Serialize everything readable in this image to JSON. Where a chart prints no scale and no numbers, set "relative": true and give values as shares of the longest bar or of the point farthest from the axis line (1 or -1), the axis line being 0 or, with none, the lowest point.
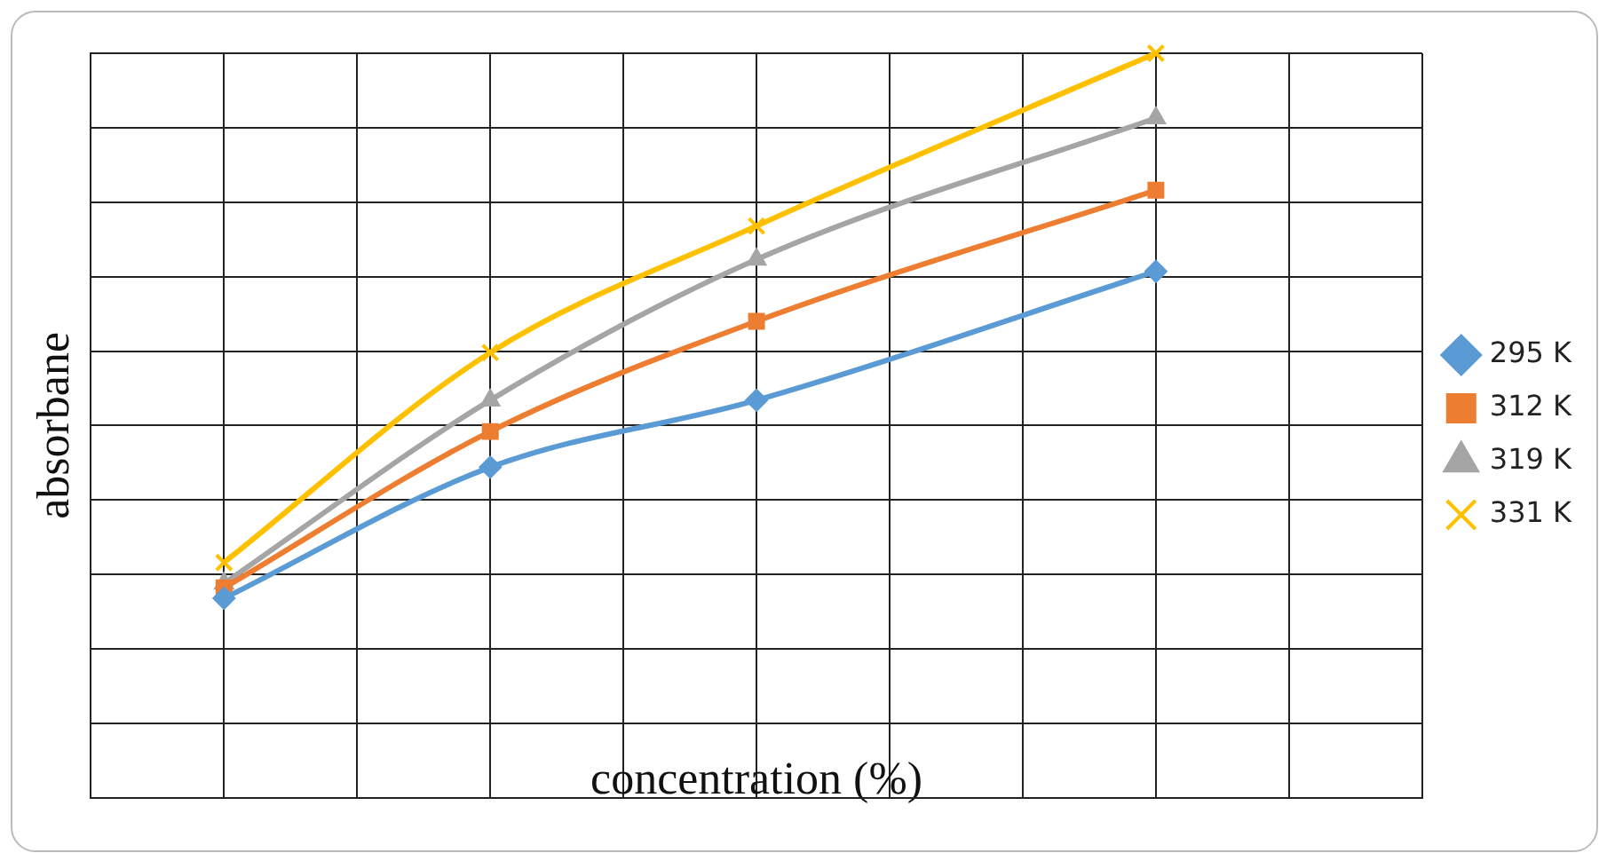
{
  "chart_data": {
    "type": "line",
    "relative": true,
    "xlabel": "concentration (%)",
    "ylabel": "absorbane",
    "categories": [
      null,
      null,
      null,
      null,
      null,
      null,
      null,
      null,
      null,
      null,
      null
    ],
    "series": [
      {
        "name": "295 K",
        "color": "#5b9bd5",
        "marker": "diamond",
        "values": [
          null,
          0.268,
          null,
          0.444,
          null,
          0.534,
          null,
          null,
          0.707,
          null,
          null
        ]
      },
      {
        "name": "312 K",
        "color": "#ed7d31",
        "marker": "square",
        "values": [
          null,
          0.282,
          null,
          0.492,
          null,
          0.64,
          null,
          null,
          0.816,
          null,
          null
        ]
      },
      {
        "name": "319 K",
        "color": "#a5a5a5",
        "marker": "triangle",
        "values": [
          null,
          0.288,
          null,
          0.534,
          null,
          0.723,
          null,
          null,
          0.913,
          null,
          null
        ]
      },
      {
        "name": "331 K",
        "color": "#ffc000",
        "marker": "cross",
        "values": [
          null,
          0.316,
          null,
          0.598,
          null,
          0.768,
          null,
          null,
          1,
          null,
          null
        ]
      }
    ],
    "grid": true,
    "legend": "right",
    "line_style": "solid"
  }
}
